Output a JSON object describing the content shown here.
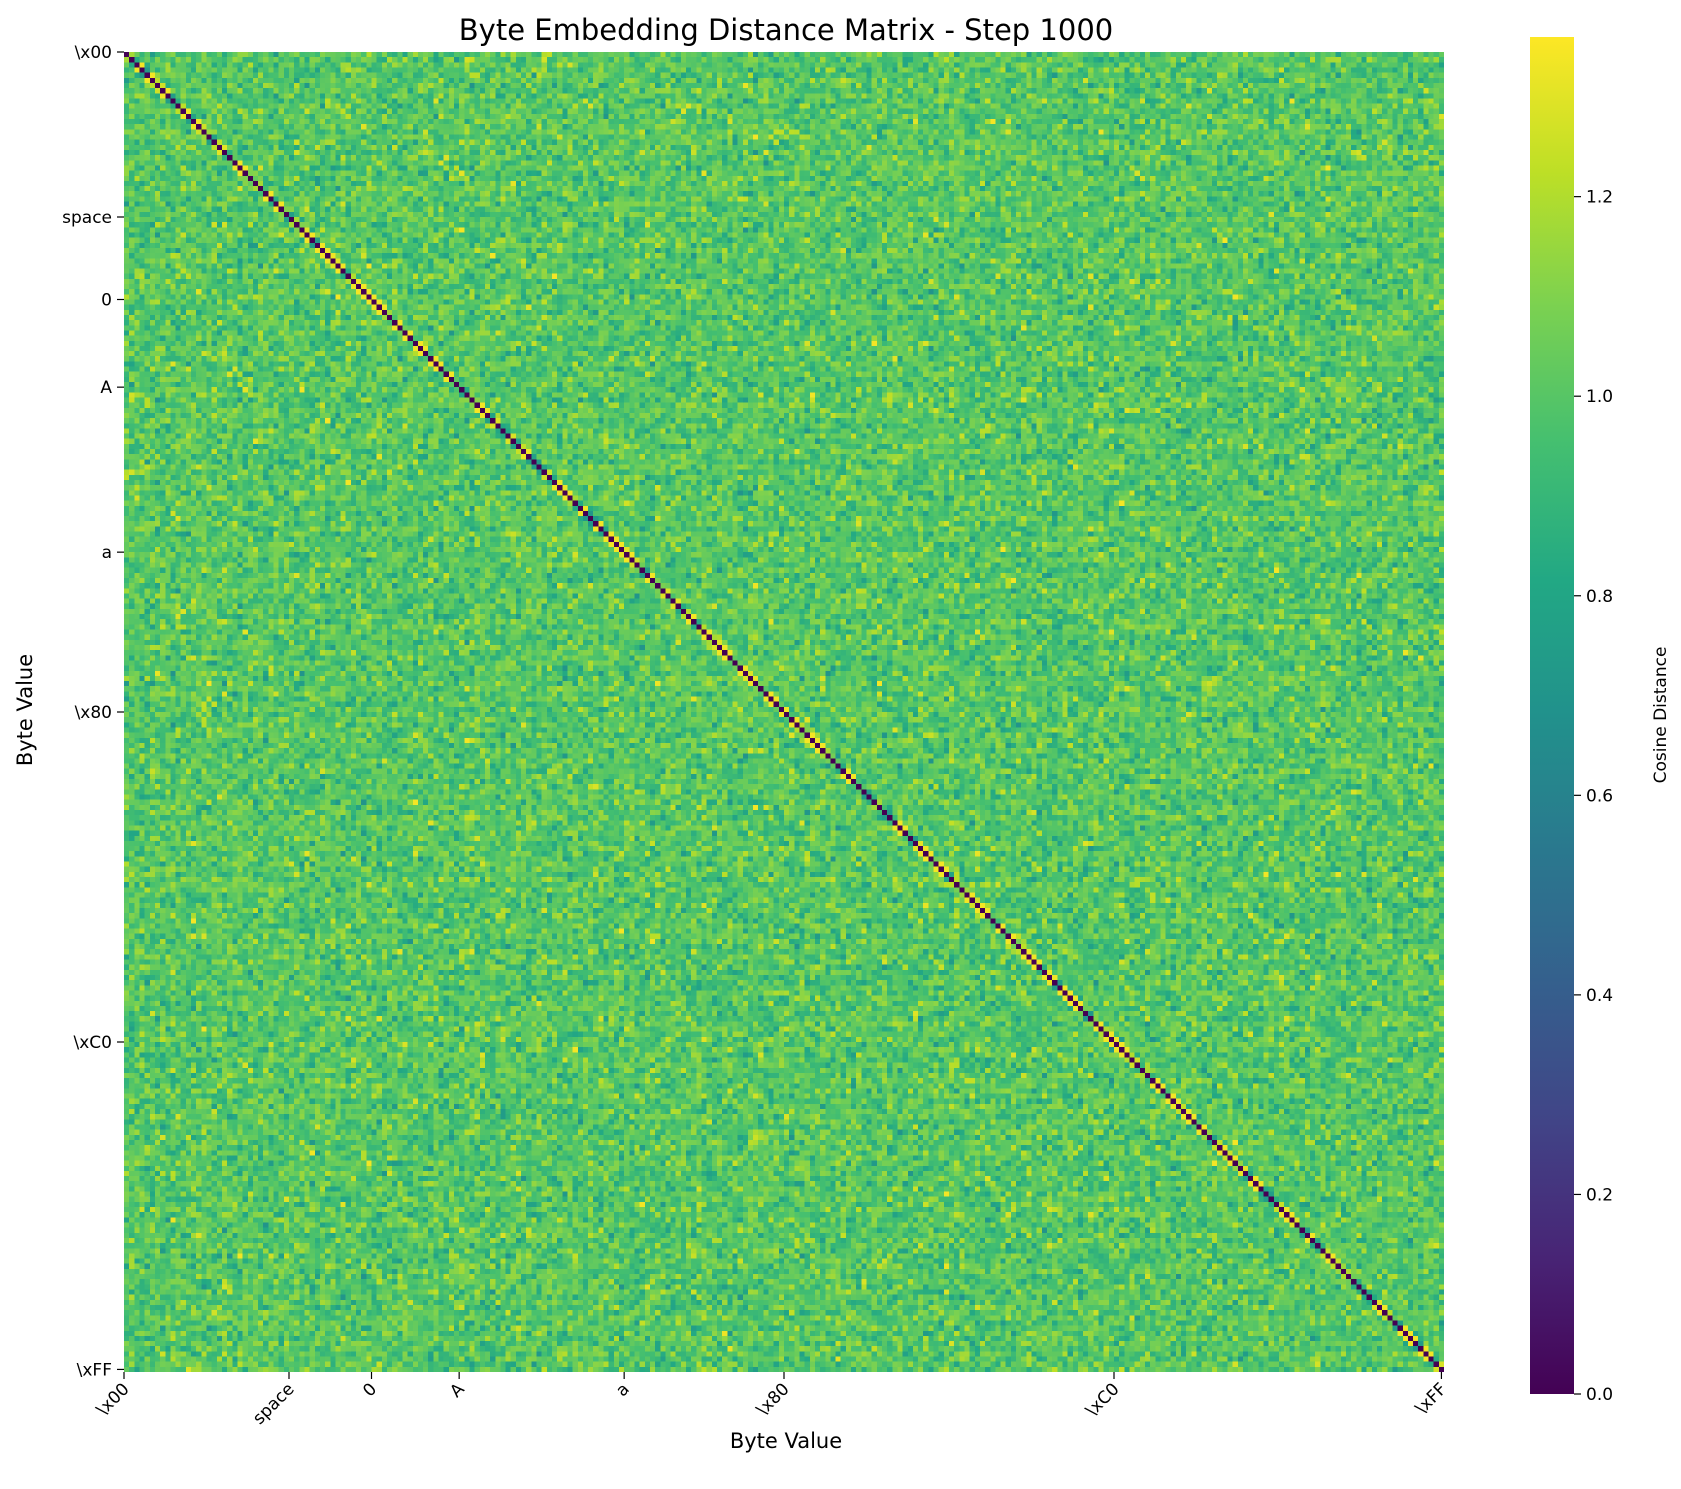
{
  "chart_data": {
    "type": "heatmap",
    "title": "Byte Embedding Distance Matrix - Step 1000",
    "xlabel": "Byte Value",
    "ylabel": "Byte Value",
    "n": 256,
    "diagonal_value": 0.0,
    "off_diagonal_typical_range": [
      0.75,
      1.3
    ],
    "off_diagonal_mean": 1.0,
    "colormap": "viridis",
    "colorbar": {
      "label": "Cosine Distance",
      "vmin": 0.0,
      "vmax": 1.36,
      "ticks": [
        {
          "value": 0.0,
          "label": "0.0"
        },
        {
          "value": 0.2,
          "label": "0.2"
        },
        {
          "value": 0.4,
          "label": "0.4"
        },
        {
          "value": 0.6,
          "label": "0.6"
        },
        {
          "value": 0.8,
          "label": "0.8"
        },
        {
          "value": 1.0,
          "label": "1.0"
        },
        {
          "value": 1.2,
          "label": "1.2"
        }
      ]
    },
    "ticks": [
      {
        "index": 0,
        "label": "\\x00"
      },
      {
        "index": 32,
        "label": "space"
      },
      {
        "index": 48,
        "label": "0"
      },
      {
        "index": 65,
        "label": "A"
      },
      {
        "index": 97,
        "label": "a"
      },
      {
        "index": 128,
        "label": "\\x80"
      },
      {
        "index": 192,
        "label": "\\xC0"
      },
      {
        "index": 255,
        "label": "\\xFF"
      }
    ],
    "grid": false
  }
}
